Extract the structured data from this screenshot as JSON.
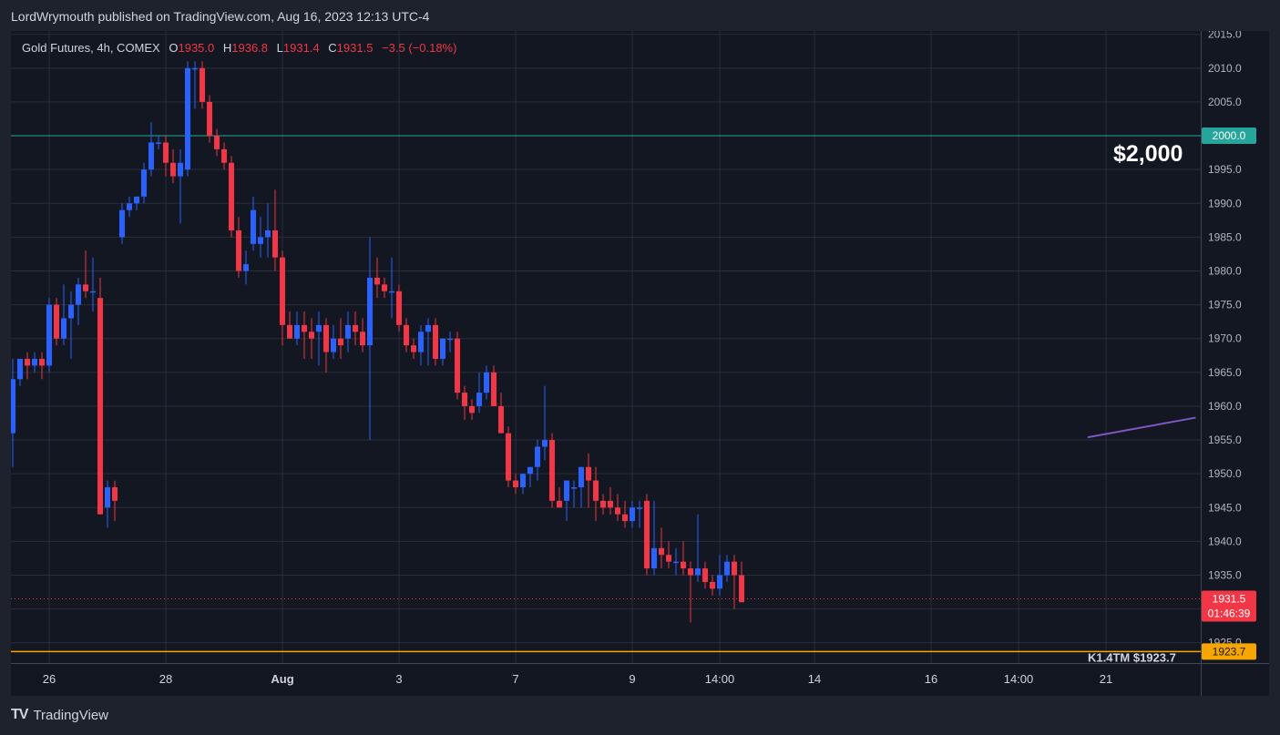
{
  "header": {
    "publisher": "LordWrymouth published on TradingView.com, Aug 16, 2023 12:13 UTC-4"
  },
  "legend": {
    "symbol": "Gold Futures, 4h, COMEX",
    "o_label": "O",
    "o_value": "1935.0",
    "h_label": "H",
    "h_value": "1936.8",
    "l_label": "L",
    "l_value": "1931.4",
    "c_label": "C",
    "c_value": "1931.5",
    "change": "−3.5 (−0.18%)"
  },
  "annotation": {
    "big_label": "$2,000"
  },
  "footer": {
    "brand": "TradingView",
    "logo_text": "TV"
  },
  "colors": {
    "up": "#2962ff",
    "down": "#f23645",
    "bg": "#131722",
    "grid": "#2a2e39",
    "level": "#26a69a",
    "support": "#f7a600",
    "trend": "#7e57c2"
  },
  "chart_data": {
    "type": "candlestick",
    "title": "Gold Futures, 4h, COMEX",
    "ylim": [
      1922,
      2015.5
    ],
    "y_ticks": [
      2015,
      2010,
      2005,
      2000,
      1995,
      1990,
      1985,
      1980,
      1975,
      1970,
      1965,
      1960,
      1955,
      1950,
      1945,
      1940,
      1935,
      1930,
      1925
    ],
    "y_tick_labels": [
      "2015.0",
      "2010.0",
      "2005.0",
      "2000.0",
      "1995.0",
      "1990.0",
      "1985.0",
      "1980.0",
      "1975.0",
      "1970.0",
      "1965.0",
      "1960.0",
      "1955.0",
      "1950.0",
      "1945.0",
      "1940.0",
      "1935.0",
      "1930.0",
      "1925.0"
    ],
    "x_ticks": [
      {
        "i": 5,
        "label": "26",
        "bold": false
      },
      {
        "i": 21,
        "label": "28",
        "bold": false
      },
      {
        "i": 37,
        "label": "Aug",
        "bold": true
      },
      {
        "i": 53,
        "label": "3",
        "bold": false
      },
      {
        "i": 69,
        "label": "7",
        "bold": false
      },
      {
        "i": 85,
        "label": "9",
        "bold": false
      },
      {
        "i": 97,
        "label": "14:00",
        "bold": false
      },
      {
        "i": 110,
        "label": "14",
        "bold": false
      },
      {
        "i": 126,
        "label": "16",
        "bold": false
      },
      {
        "i": 138,
        "label": "14:00",
        "bold": false
      },
      {
        "i": 150,
        "label": "21",
        "bold": false
      }
    ],
    "candles": [
      [
        1956,
        1967,
        1951,
        1964
      ],
      [
        1964,
        1967,
        1963,
        1967
      ],
      [
        1967,
        1968,
        1964,
        1966
      ],
      [
        1966,
        1968,
        1965,
        1967
      ],
      [
        1967,
        1968,
        1964,
        1966
      ],
      [
        1966,
        1976,
        1965,
        1975
      ],
      [
        1975,
        1976,
        1969,
        1970
      ],
      [
        1970,
        1978,
        1969,
        1973
      ],
      [
        1973,
        1977,
        1967,
        1975
      ],
      [
        1975,
        1979,
        1972,
        1978
      ],
      [
        1978,
        1983,
        1976,
        1977
      ],
      [
        1977,
        1982,
        1974,
        1977
      ],
      [
        1976,
        1979,
        1944,
        1944
      ],
      [
        1945,
        1949,
        1942,
        1948
      ],
      [
        1948,
        1949,
        1943,
        1946
      ],
      [
        1985,
        1990,
        1984,
        1989
      ],
      [
        1989,
        1991,
        1988,
        1990
      ],
      [
        1990,
        1991,
        1989,
        1991
      ],
      [
        1991,
        1996,
        1990,
        1995
      ],
      [
        1995,
        2002,
        1994,
        1999
      ],
      [
        1999,
        2000,
        1998,
        1999
      ],
      [
        1999,
        2000,
        1994,
        1996
      ],
      [
        1996,
        1998,
        1993,
        1994
      ],
      [
        1994,
        1998,
        1987,
        1996
      ],
      [
        1995,
        2011,
        1994,
        2010
      ],
      [
        2010,
        2011,
        2004,
        2010
      ],
      [
        2010,
        2011,
        2004,
        2005
      ],
      [
        2005,
        2006,
        1999,
        2000
      ],
      [
        2000,
        2001,
        1997,
        1998
      ],
      [
        1998,
        1999,
        1995,
        1996
      ],
      [
        1996,
        1997,
        1985,
        1986
      ],
      [
        1986,
        1988,
        1979,
        1980
      ],
      [
        1980,
        1983,
        1978,
        1981
      ],
      [
        1984,
        1991,
        1983,
        1989
      ],
      [
        1984,
        1988,
        1982,
        1985
      ],
      [
        1985,
        1990,
        1982,
        1986
      ],
      [
        1986,
        1992,
        1980,
        1982
      ],
      [
        1982,
        1983,
        1969,
        1972
      ],
      [
        1972,
        1974,
        1970,
        1970
      ],
      [
        1970,
        1974,
        1969,
        1972
      ],
      [
        1972,
        1974,
        1967,
        1971
      ],
      [
        1971,
        1973,
        1967,
        1970
      ],
      [
        1971,
        1974,
        1966,
        1972
      ],
      [
        1972,
        1973,
        1965,
        1968
      ],
      [
        1968,
        1972,
        1967,
        1970
      ],
      [
        1970,
        1973,
        1967,
        1969
      ],
      [
        1970,
        1974,
        1968,
        1972
      ],
      [
        1972,
        1974,
        1969,
        1971
      ],
      [
        1971,
        1973,
        1968,
        1969
      ],
      [
        1969,
        1985,
        1955,
        1979
      ],
      [
        1979,
        1982,
        1976,
        1978
      ],
      [
        1978,
        1979,
        1976,
        1977
      ],
      [
        1977,
        1982,
        1973,
        1977
      ],
      [
        1977,
        1978,
        1971,
        1972
      ],
      [
        1972,
        1973,
        1968,
        1969
      ],
      [
        1969,
        1970,
        1967,
        1968
      ],
      [
        1968,
        1972,
        1966,
        1971
      ],
      [
        1971,
        1973,
        1966,
        1972
      ],
      [
        1972,
        1973,
        1966,
        1967
      ],
      [
        1967,
        1970,
        1966,
        1970
      ],
      [
        1970,
        1971,
        1968,
        1970
      ],
      [
        1970,
        1971,
        1961,
        1962
      ],
      [
        1962,
        1963,
        1958,
        1960
      ],
      [
        1960,
        1961,
        1958,
        1959
      ],
      [
        1960,
        1965,
        1959,
        1962
      ],
      [
        1962,
        1966,
        1961,
        1965
      ],
      [
        1965,
        1966,
        1960,
        1960
      ],
      [
        1960,
        1962,
        1956,
        1956
      ],
      [
        1956,
        1957,
        1948,
        1949
      ],
      [
        1949,
        1950,
        1947,
        1948
      ],
      [
        1948,
        1950,
        1947,
        1950
      ],
      [
        1950,
        1951,
        1948,
        1951
      ],
      [
        1951,
        1955,
        1949,
        1954
      ],
      [
        1954,
        1963,
        1952,
        1955
      ],
      [
        1955,
        1956,
        1945,
        1946
      ],
      [
        1946,
        1948,
        1945,
        1945
      ],
      [
        1946,
        1949,
        1943,
        1949
      ],
      [
        1948,
        1949,
        1945,
        1948
      ],
      [
        1948,
        1951,
        1945,
        1951
      ],
      [
        1951,
        1953,
        1945,
        1949
      ],
      [
        1949,
        1951,
        1943,
        1946
      ],
      [
        1946,
        1947,
        1944,
        1945
      ],
      [
        1946,
        1948,
        1944,
        1945
      ],
      [
        1945,
        1947,
        1943,
        1944
      ],
      [
        1944,
        1946,
        1942,
        1943
      ],
      [
        1943,
        1946,
        1942,
        1945
      ],
      [
        1945,
        1946,
        1942,
        1945
      ],
      [
        1946,
        1947,
        1935,
        1936
      ],
      [
        1936,
        1946,
        1935,
        1939
      ],
      [
        1939,
        1942,
        1936,
        1938
      ],
      [
        1938,
        1940,
        1936,
        1937
      ],
      [
        1937,
        1939,
        1935,
        1937
      ],
      [
        1937,
        1940,
        1935,
        1936
      ],
      [
        1936,
        1937,
        1928,
        1935
      ],
      [
        1935,
        1944,
        1934,
        1936
      ],
      [
        1936,
        1937,
        1933,
        1934
      ],
      [
        1934,
        1935,
        1932,
        1933
      ],
      [
        1933,
        1938,
        1932,
        1935
      ],
      [
        1935,
        1938,
        1934,
        1937
      ],
      [
        1937,
        1938,
        1930,
        1935
      ],
      [
        1935,
        1937,
        1931,
        1931
      ]
    ],
    "level_line": {
      "value": 2000.0,
      "label": "2000.0"
    },
    "support_line": {
      "value": 1923.7,
      "label": "1923.7"
    },
    "current_price": {
      "value": 1931.5,
      "label": "1931.5",
      "countdown": "01:46:39"
    },
    "trend_line": {
      "from": {
        "i": 147.5,
        "v": 1955.4
      },
      "to": {
        "i": 162.3,
        "v": 1958.3
      }
    },
    "cut_off_text": "K1.4TM $1923.7"
  }
}
